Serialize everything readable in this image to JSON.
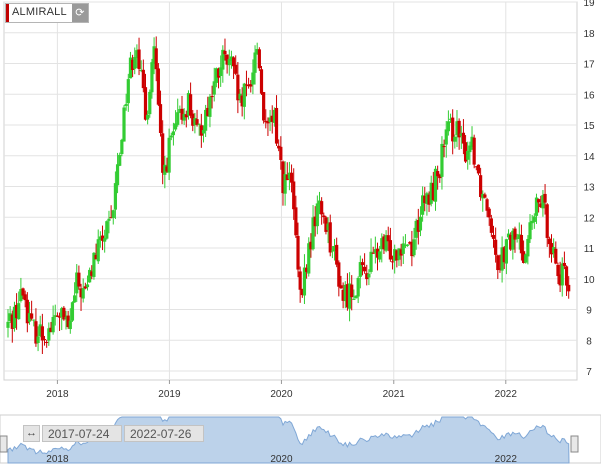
{
  "instrument": {
    "symbol": "ALMIRALL",
    "refresh_icon": "refresh-icon"
  },
  "range": {
    "start": "2017-07-24",
    "end": "2022-07-26"
  },
  "colors": {
    "up": "#33cc33",
    "down": "#cc0000",
    "navigator_fill": "#bcd2ea",
    "navigator_line": "#7fa7d6"
  },
  "chart_data": {
    "type": "candlestick",
    "interval": "weekly",
    "y_axis": {
      "min": 7,
      "max": 19,
      "ticks": [
        7,
        8,
        9,
        10,
        11,
        12,
        13,
        14,
        15,
        16,
        17,
        18,
        19
      ],
      "position": "right"
    },
    "x_axis": {
      "ticks": [
        "2018",
        "2019",
        "2020",
        "2021",
        "2022"
      ]
    },
    "navigator_ticks": [
      "2018",
      "2020",
      "2022"
    ],
    "grid": true,
    "anchors": [
      [
        "2017-07-24",
        8.4
      ],
      [
        "2017-08-21",
        8.9
      ],
      [
        "2017-09-18",
        9.6
      ],
      [
        "2017-10-16",
        8.4
      ],
      [
        "2017-11-20",
        8.2
      ],
      [
        "2017-12-18",
        8.4
      ],
      [
        "2018-01-15",
        8.9
      ],
      [
        "2018-02-12",
        8.3
      ],
      [
        "2018-03-12",
        9.8
      ],
      [
        "2018-04-09",
        9.5
      ],
      [
        "2018-05-07",
        10.6
      ],
      [
        "2018-06-04",
        11.3
      ],
      [
        "2018-07-02",
        11.7
      ],
      [
        "2018-07-30",
        14.2
      ],
      [
        "2018-08-27",
        16.6
      ],
      [
        "2018-09-24",
        17.8
      ],
      [
        "2018-10-22",
        15.1
      ],
      [
        "2018-11-19",
        17.6
      ],
      [
        "2018-12-17",
        13.3
      ],
      [
        "2019-01-14",
        14.5
      ],
      [
        "2019-02-11",
        15.2
      ],
      [
        "2019-03-11",
        15.8
      ],
      [
        "2019-04-08",
        14.6
      ],
      [
        "2019-05-06",
        15.4
      ],
      [
        "2019-06-03",
        16.3
      ],
      [
        "2019-07-01",
        17.1
      ],
      [
        "2019-07-29",
        16.9
      ],
      [
        "2019-08-26",
        15.6
      ],
      [
        "2019-09-23",
        16.2
      ],
      [
        "2019-10-21",
        17.6
      ],
      [
        "2019-11-18",
        14.7
      ],
      [
        "2019-12-16",
        15.2
      ],
      [
        "2020-01-13",
        13.2
      ],
      [
        "2020-02-10",
        13.1
      ],
      [
        "2020-03-09",
        9.2
      ],
      [
        "2020-04-06",
        10.9
      ],
      [
        "2020-05-04",
        12.4
      ],
      [
        "2020-06-01",
        11.9
      ],
      [
        "2020-06-29",
        10.7
      ],
      [
        "2020-07-27",
        9.4
      ],
      [
        "2020-08-24",
        9.6
      ],
      [
        "2020-09-21",
        10.1
      ],
      [
        "2020-10-19",
        10.4
      ],
      [
        "2020-11-16",
        10.9
      ],
      [
        "2020-12-14",
        11.0
      ],
      [
        "2021-01-11",
        10.9
      ],
      [
        "2021-02-08",
        11.3
      ],
      [
        "2021-03-08",
        11.1
      ],
      [
        "2021-04-05",
        12.2
      ],
      [
        "2021-05-03",
        12.6
      ],
      [
        "2021-05-31",
        13.4
      ],
      [
        "2021-06-28",
        14.6
      ],
      [
        "2021-07-26",
        15.0
      ],
      [
        "2021-08-23",
        14.1
      ],
      [
        "2021-09-20",
        14.5
      ],
      [
        "2021-10-18",
        13.0
      ],
      [
        "2021-11-15",
        12.3
      ],
      [
        "2021-12-13",
        10.6
      ],
      [
        "2022-01-10",
        11.0
      ],
      [
        "2022-02-07",
        11.4
      ],
      [
        "2022-03-07",
        10.9
      ],
      [
        "2022-04-04",
        11.8
      ],
      [
        "2022-05-02",
        12.6
      ],
      [
        "2022-05-30",
        11.5
      ],
      [
        "2022-06-27",
        10.2
      ],
      [
        "2022-07-26",
        9.9
      ]
    ]
  }
}
